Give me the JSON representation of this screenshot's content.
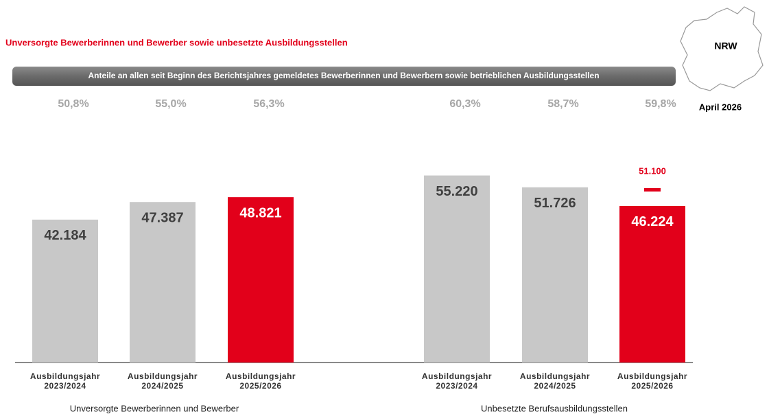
{
  "title": "Unversorgte Bewerberinnen und Bewerber sowie unbesetzte Ausbildungsstellen",
  "subtitle": "Anteile an allen seit Beginn des Berichtsjahres gemeldetes Bewerberinnen und Bewerbern sowie betrieblichen Ausbildungsstellen",
  "region": "NRW",
  "date": "April 2026",
  "chart_data": [
    {
      "type": "bar",
      "xlabel": "Unversorgte Bewerberinnen und Bewerber",
      "categories": [
        [
          "Ausbildungsjahr",
          "2023/2024"
        ],
        [
          "Ausbildungsjahr",
          "2024/2025"
        ],
        [
          "Ausbildungsjahr",
          "2025/2026"
        ]
      ],
      "values": [
        42184,
        47387,
        48821
      ],
      "value_labels": [
        "42.184",
        "47.387",
        "48.821"
      ],
      "shares": [
        50.8,
        55.0,
        56.3
      ],
      "share_labels": [
        "50,8%",
        "55,0%",
        "56,3%"
      ],
      "colors": [
        "#c8c8c8",
        "#c8c8c8",
        "#e2001a"
      ],
      "ylim": [
        0,
        60000
      ]
    },
    {
      "type": "bar",
      "xlabel": "Unbesetzte Berufsausbildungsstellen",
      "categories": [
        [
          "Ausbildungsjahr",
          "2023/2024"
        ],
        [
          "Ausbildungsjahr",
          "2024/2025"
        ],
        [
          "Ausbildungsjahr",
          "2025/2026"
        ]
      ],
      "values": [
        55220,
        51726,
        46224
      ],
      "value_labels": [
        "55.220",
        "51.726",
        "46.224"
      ],
      "shares": [
        60.3,
        58.7,
        59.8
      ],
      "share_labels": [
        "60,3%",
        "58,7%",
        "59,8%"
      ],
      "targets": [
        null,
        null,
        51100
      ],
      "target_labels": [
        null,
        null,
        "51.100"
      ],
      "colors": [
        "#c8c8c8",
        "#c8c8c8",
        "#e2001a"
      ],
      "ylim": [
        0,
        60000
      ]
    }
  ]
}
